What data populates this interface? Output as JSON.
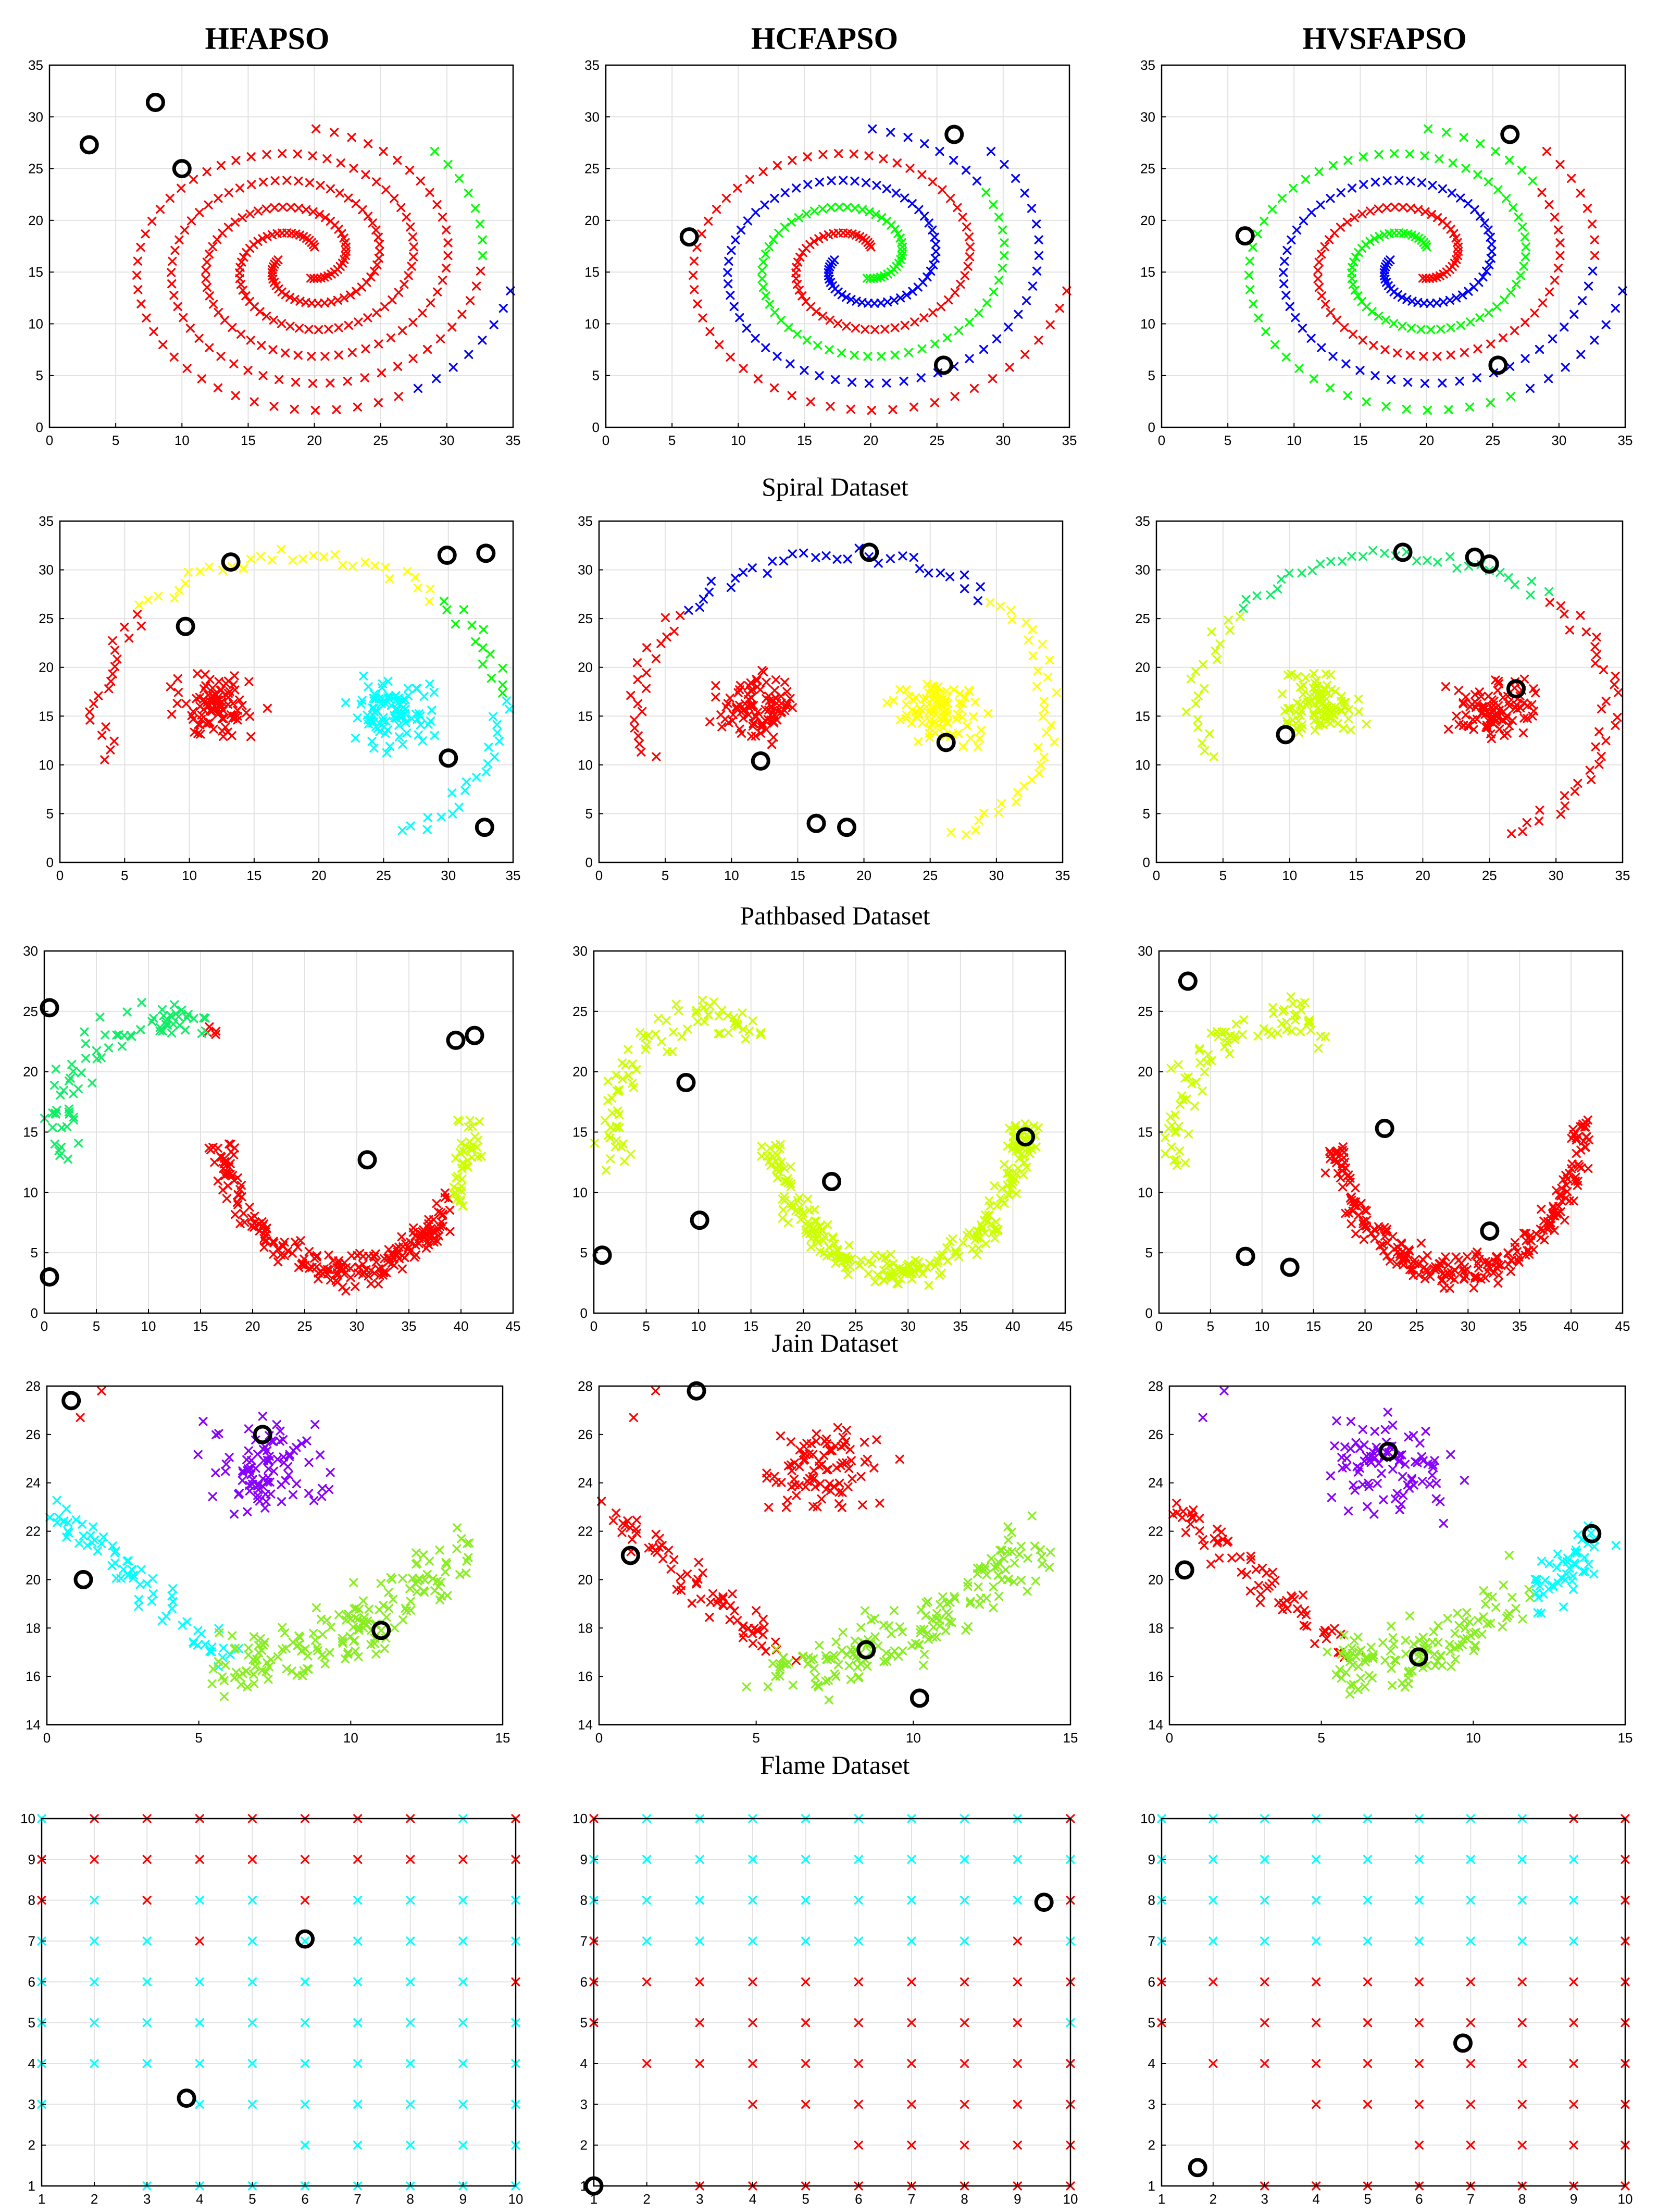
{
  "column_titles": [
    "HFAPSO",
    "HCFAPSO",
    "HVSFAPSO"
  ],
  "row_captions": [
    "Spiral Dataset",
    "Pathbased Dataset",
    "Jain Dataset",
    "Flame Dataset",
    ""
  ],
  "colors": {
    "red": "#ff0000",
    "blue": "#0000ff",
    "green": "#00ff00",
    "yellow": "#ffff00",
    "cyan": "#00ffff",
    "magenta": "#ff00ff",
    "yellowgreen": "#ccff00",
    "lime": "#88ee22",
    "violet": "#8800ff",
    "springgreen": "#11ee66"
  },
  "chart_data": [
    {
      "type": "scatter",
      "dataset": "spiral",
      "method": "HFAPSO",
      "xlim": [
        0,
        35
      ],
      "ylim": [
        0,
        35
      ],
      "xticks": [
        0,
        5,
        10,
        15,
        20,
        25,
        30,
        35
      ],
      "yticks": [
        0,
        5,
        10,
        15,
        20,
        25,
        30,
        35
      ],
      "grid": true,
      "colors": {
        "outer": "red",
        "middle": "red",
        "inner": "red",
        "outer_tip": "blue",
        "middle_tip": "green",
        "inner_tip": "red"
      },
      "centroids": [
        [
          3,
          27.3
        ],
        [
          8,
          31.4
        ],
        [
          10,
          25
        ]
      ]
    },
    {
      "type": "scatter",
      "dataset": "spiral",
      "method": "HCFAPSO",
      "xlim": [
        0,
        35
      ],
      "ylim": [
        0,
        35
      ],
      "xticks": [
        0,
        5,
        10,
        15,
        20,
        25,
        30,
        35
      ],
      "yticks": [
        0,
        5,
        10,
        15,
        20,
        25,
        30,
        35
      ],
      "grid": true,
      "colors": {
        "outer": "red",
        "middle": "blue",
        "inner": "green",
        "outer_tip": "red",
        "middle_tip": "blue",
        "inner_tip": "blue"
      },
      "centroids": [
        [
          6.3,
          18.4
        ],
        [
          26.3,
          28.3
        ],
        [
          25.5,
          6
        ]
      ]
    },
    {
      "type": "scatter",
      "dataset": "spiral",
      "method": "HVSFAPSO",
      "xlim": [
        0,
        35
      ],
      "ylim": [
        0,
        35
      ],
      "xticks": [
        0,
        5,
        10,
        15,
        20,
        25,
        30,
        35
      ],
      "yticks": [
        0,
        5,
        10,
        15,
        20,
        25,
        30,
        35
      ],
      "grid": true,
      "colors": {
        "outer": "green",
        "middle": "blue",
        "inner": "red",
        "outer_tip": "blue",
        "middle_tip": "red",
        "inner_tip": "green"
      },
      "centroids": [
        [
          6.3,
          18.5
        ],
        [
          26.3,
          28.3
        ],
        [
          25.4,
          6
        ]
      ]
    },
    {
      "type": "scatter",
      "dataset": "pathbased",
      "method": "HFAPSO",
      "xlim": [
        0,
        35
      ],
      "ylim": [
        0,
        35
      ],
      "xticks": [
        0,
        5,
        10,
        15,
        20,
        25,
        30,
        35
      ],
      "yticks": [
        0,
        5,
        10,
        15,
        20,
        25,
        30,
        35
      ],
      "grid": true,
      "colors": {
        "left": "red",
        "right": "cyan",
        "arc_left": "red",
        "arc_top": "yellow",
        "arc_right": "green",
        "arc_bottom": "cyan"
      },
      "centroids": [
        [
          13.2,
          30.8
        ],
        [
          9.7,
          24.2
        ],
        [
          29.9,
          31.5
        ],
        [
          32.9,
          31.7
        ],
        [
          30,
          10.7
        ],
        [
          32.8,
          3.6
        ]
      ]
    },
    {
      "type": "scatter",
      "dataset": "pathbased",
      "method": "HCFAPSO",
      "xlim": [
        0,
        35
      ],
      "ylim": [
        0,
        35
      ],
      "xticks": [
        0,
        5,
        10,
        15,
        20,
        25,
        30,
        35
      ],
      "yticks": [
        0,
        5,
        10,
        15,
        20,
        25,
        30,
        35
      ],
      "grid": true,
      "colors": {
        "left": "red",
        "right": "yellow",
        "arc_left": "red",
        "arc_top": "blue",
        "arc_right": "yellow",
        "arc_bottom": "yellow"
      },
      "centroids": [
        [
          20.4,
          31.8
        ],
        [
          12.2,
          10.4
        ],
        [
          26.2,
          12.3
        ],
        [
          16.4,
          4
        ],
        [
          18.7,
          3.6
        ]
      ]
    },
    {
      "type": "scatter",
      "dataset": "pathbased",
      "method": "HVSFAPSO",
      "xlim": [
        0,
        35
      ],
      "ylim": [
        0,
        35
      ],
      "xticks": [
        0,
        5,
        10,
        15,
        20,
        25,
        30,
        35
      ],
      "yticks": [
        0,
        5,
        10,
        15,
        20,
        25,
        30,
        35
      ],
      "grid": true,
      "colors": {
        "left": "yellowgreen",
        "right": "red",
        "arc_left": "yellowgreen",
        "arc_top": "springgreen",
        "arc_right": "red",
        "arc_bottom": "red"
      },
      "centroids": [
        [
          18.5,
          31.8
        ],
        [
          23.9,
          31.3
        ],
        [
          25,
          30.6
        ],
        [
          27,
          17.8
        ],
        [
          9.7,
          13.1
        ]
      ]
    },
    {
      "type": "scatter",
      "dataset": "jain",
      "method": "HFAPSO",
      "xlim": [
        0,
        45
      ],
      "ylim": [
        0,
        30
      ],
      "xticks": [
        0,
        5,
        10,
        15,
        20,
        25,
        30,
        35,
        40,
        45
      ],
      "yticks": [
        0,
        5,
        10,
        15,
        20,
        25,
        30
      ],
      "grid": true,
      "colors": {
        "upper_left": "springgreen",
        "upper_mid": "red",
        "lower": "red",
        "lower_tip": "yellowgreen"
      },
      "centroids": [
        [
          0.5,
          25.3
        ],
        [
          0.5,
          3
        ],
        [
          31,
          12.7
        ],
        [
          39.5,
          22.6
        ],
        [
          41.3,
          23
        ]
      ]
    },
    {
      "type": "scatter",
      "dataset": "jain",
      "method": "HCFAPSO",
      "xlim": [
        0,
        45
      ],
      "ylim": [
        0,
        30
      ],
      "xticks": [
        0,
        5,
        10,
        15,
        20,
        25,
        30,
        35,
        40,
        45
      ],
      "yticks": [
        0,
        5,
        10,
        15,
        20,
        25,
        30
      ],
      "grid": true,
      "colors": {
        "upper_left": "yellowgreen",
        "upper_mid": "yellowgreen",
        "lower": "yellowgreen",
        "lower_tip": "yellowgreen"
      },
      "centroids": [
        [
          0.8,
          4.8
        ],
        [
          8.8,
          19.1
        ],
        [
          10.1,
          7.7
        ],
        [
          22.7,
          10.9
        ],
        [
          41.2,
          14.6
        ]
      ]
    },
    {
      "type": "scatter",
      "dataset": "jain",
      "method": "HVSFAPSO",
      "xlim": [
        0,
        45
      ],
      "ylim": [
        0,
        30
      ],
      "xticks": [
        0,
        5,
        10,
        15,
        20,
        25,
        30,
        35,
        40,
        45
      ],
      "yticks": [
        0,
        5,
        10,
        15,
        20,
        25,
        30
      ],
      "grid": true,
      "colors": {
        "upper_left": "yellowgreen",
        "upper_mid": "yellowgreen",
        "lower": "red",
        "lower_tip": "red"
      },
      "centroids": [
        [
          2.8,
          27.5
        ],
        [
          8.4,
          4.7
        ],
        [
          12.7,
          3.8
        ],
        [
          21.9,
          15.3
        ],
        [
          32.1,
          6.8
        ]
      ]
    },
    {
      "type": "scatter",
      "dataset": "flame",
      "method": "HFAPSO",
      "xlim": [
        0,
        15
      ],
      "ylim": [
        14,
        28
      ],
      "xticks": [
        0,
        5,
        10,
        15
      ],
      "yticks": [
        14,
        16,
        18,
        20,
        22,
        24,
        26,
        28
      ],
      "grid": false,
      "colors": {
        "top": "violet",
        "left": "cyan",
        "right": "lime",
        "outlier": "red"
      },
      "centroids": [
        [
          0.8,
          27.4
        ],
        [
          7.1,
          26
        ],
        [
          1.2,
          20
        ],
        [
          11,
          17.9
        ]
      ]
    },
    {
      "type": "scatter",
      "dataset": "flame",
      "method": "HCFAPSO",
      "xlim": [
        0,
        15
      ],
      "ylim": [
        14,
        28
      ],
      "xticks": [
        0,
        5,
        10,
        15
      ],
      "yticks": [
        14,
        16,
        18,
        20,
        22,
        24,
        26,
        28
      ],
      "grid": false,
      "colors": {
        "top": "red",
        "left": "red",
        "right": "lime",
        "outlier": "red"
      },
      "centroids": [
        [
          3.1,
          27.8
        ],
        [
          1,
          21
        ],
        [
          8.5,
          17.1
        ],
        [
          10.2,
          15.1
        ]
      ]
    },
    {
      "type": "scatter",
      "dataset": "flame",
      "method": "HVSFAPSO",
      "xlim": [
        0,
        15
      ],
      "ylim": [
        14,
        28
      ],
      "xticks": [
        0,
        5,
        10,
        15
      ],
      "yticks": [
        14,
        16,
        18,
        20,
        22,
        24,
        26,
        28
      ],
      "grid": false,
      "colors": {
        "top": "violet",
        "left": "red",
        "right": "lime",
        "right_tip": "cyan",
        "outlier": "violet"
      },
      "centroids": [
        [
          0.5,
          20.4
        ],
        [
          7.2,
          25.3
        ],
        [
          8.2,
          16.8
        ],
        [
          13.9,
          21.9
        ]
      ]
    },
    {
      "type": "scatter",
      "dataset": "grid",
      "method": "HFAPSO",
      "xlim": [
        1,
        10
      ],
      "ylim": [
        1,
        10
      ],
      "xticks": [
        1,
        2,
        3,
        4,
        5,
        6,
        7,
        8,
        9,
        10
      ],
      "yticks": [
        1,
        2,
        3,
        4,
        5,
        6,
        7,
        8,
        9,
        10
      ],
      "grid": true,
      "cells": [
        [
          "c",
          "r",
          "r",
          "r",
          "r",
          "r",
          "r",
          "r",
          "c",
          "r"
        ],
        [
          "r",
          "r",
          "r",
          "r",
          "r",
          "r",
          "r",
          "r",
          "r",
          "r"
        ],
        [
          "r",
          "c",
          "r",
          "c",
          "c",
          "r",
          "c",
          "c",
          "c",
          "c"
        ],
        [
          "c",
          "c",
          "c",
          "r",
          "c",
          "c",
          "c",
          "c",
          "c",
          "c"
        ],
        [
          "c",
          "c",
          "c",
          "c",
          "c",
          "c",
          "c",
          "c",
          "c",
          "r"
        ],
        [
          "c",
          "c",
          "c",
          "c",
          "c",
          "c",
          "c",
          "c",
          "c",
          "c"
        ],
        [
          "c",
          "c",
          "c",
          "c",
          "c",
          "c",
          "c",
          "c",
          "c",
          "c"
        ],
        [
          "c",
          "-",
          "-",
          "c",
          "c",
          "c",
          "c",
          "c",
          "c",
          "c"
        ],
        [
          "-",
          "-",
          "-",
          "-",
          "-",
          "c",
          "c",
          "c",
          "c",
          "c"
        ],
        [
          "-",
          "-",
          "c",
          "c",
          "c",
          "c",
          "c",
          "c",
          "c",
          "c"
        ]
      ],
      "centroids": [
        [
          3.75,
          3.15
        ],
        [
          6,
          7.05
        ]
      ]
    },
    {
      "type": "scatter",
      "dataset": "grid",
      "method": "HCFAPSO",
      "xlim": [
        1,
        10
      ],
      "ylim": [
        1,
        10
      ],
      "xticks": [
        1,
        2,
        3,
        4,
        5,
        6,
        7,
        8,
        9,
        10
      ],
      "yticks": [
        1,
        2,
        3,
        4,
        5,
        6,
        7,
        8,
        9,
        10
      ],
      "grid": true,
      "cells": [
        [
          "r",
          "c",
          "c",
          "c",
          "c",
          "c",
          "c",
          "c",
          "c",
          "r"
        ],
        [
          "c",
          "c",
          "c",
          "c",
          "c",
          "c",
          "c",
          "c",
          "c",
          "c"
        ],
        [
          "c",
          "c",
          "c",
          "c",
          "c",
          "c",
          "c",
          "c",
          "c",
          "r"
        ],
        [
          "r",
          "c",
          "c",
          "c",
          "c",
          "c",
          "c",
          "c",
          "r",
          "c"
        ],
        [
          "r",
          "r",
          "r",
          "r",
          "r",
          "r",
          "r",
          "r",
          "r",
          "r"
        ],
        [
          "r",
          "-",
          "r",
          "r",
          "r",
          "r",
          "r",
          "r",
          "r",
          "c"
        ],
        [
          "-",
          "r",
          "r",
          "r",
          "r",
          "r",
          "r",
          "r",
          "r",
          "r"
        ],
        [
          "-",
          "-",
          "-",
          "r",
          "r",
          "r",
          "r",
          "r",
          "r",
          "r"
        ],
        [
          "-",
          "-",
          "-",
          "-",
          "-",
          "r",
          "r",
          "r",
          "r",
          "r"
        ],
        [
          "-",
          "-",
          "r",
          "r",
          "r",
          "r",
          "r",
          "r",
          "r",
          "r"
        ]
      ],
      "centroids": [
        [
          1,
          1
        ],
        [
          9.5,
          7.95
        ]
      ]
    },
    {
      "type": "scatter",
      "dataset": "grid",
      "method": "HVSFAPSO",
      "xlim": [
        1,
        10
      ],
      "ylim": [
        1,
        10
      ],
      "xticks": [
        1,
        2,
        3,
        4,
        5,
        6,
        7,
        8,
        9,
        10
      ],
      "yticks": [
        1,
        2,
        3,
        4,
        5,
        6,
        7,
        8,
        9,
        10
      ],
      "grid": true,
      "cells": [
        [
          "c",
          "c",
          "c",
          "c",
          "c",
          "c",
          "c",
          "c",
          "r",
          "r"
        ],
        [
          "c",
          "c",
          "c",
          "c",
          "c",
          "c",
          "c",
          "c",
          "c",
          "r"
        ],
        [
          "c",
          "c",
          "c",
          "c",
          "c",
          "c",
          "c",
          "c",
          "c",
          "r"
        ],
        [
          "c",
          "c",
          "c",
          "c",
          "c",
          "c",
          "c",
          "c",
          "c",
          "r"
        ],
        [
          "r",
          "r",
          "r",
          "r",
          "r",
          "r",
          "r",
          "r",
          "r",
          "r"
        ],
        [
          "r",
          "-",
          "r",
          "r",
          "r",
          "r",
          "r",
          "r",
          "r",
          "r"
        ],
        [
          "-",
          "r",
          "r",
          "r",
          "r",
          "r",
          "r",
          "r",
          "r",
          "r"
        ],
        [
          "-",
          "-",
          "-",
          "r",
          "r",
          "r",
          "r",
          "r",
          "r",
          "r"
        ],
        [
          "-",
          "-",
          "-",
          "-",
          "-",
          "r",
          "r",
          "r",
          "r",
          "r"
        ],
        [
          "-",
          "-",
          "r",
          "r",
          "r",
          "r",
          "r",
          "r",
          "r",
          "r"
        ]
      ],
      "centroids": [
        [
          1.7,
          1.45
        ],
        [
          6.85,
          4.5
        ]
      ]
    }
  ]
}
